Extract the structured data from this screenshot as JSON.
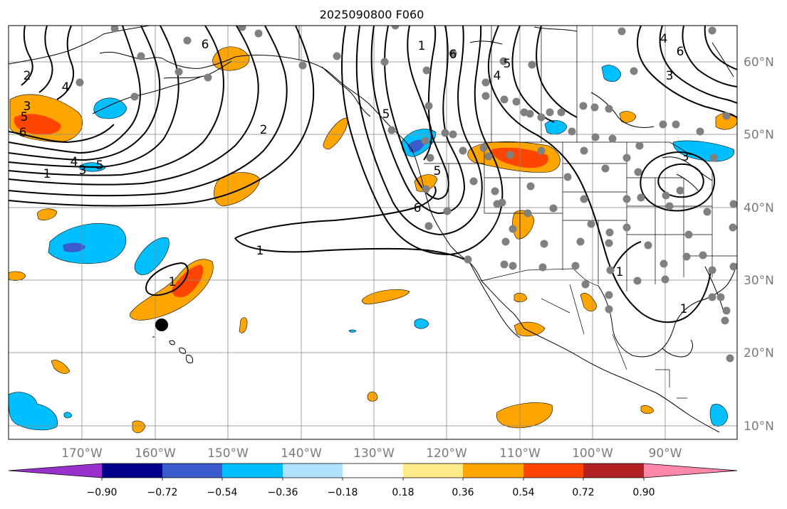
{
  "title": "2025090800 F060",
  "map": {
    "longitude_labels": [
      "170°W",
      "160°W",
      "150°W",
      "140°W",
      "130°W",
      "120°W",
      "110°W",
      "100°W",
      "90°W"
    ],
    "latitude_labels": [
      "60°N",
      "50°N",
      "40°N",
      "30°N",
      "20°N",
      "10°N"
    ],
    "contour_labels": [
      "6",
      "2",
      "1",
      "4",
      "3",
      "5",
      "1",
      "6",
      "5",
      "2",
      "3",
      "4",
      "5",
      "6",
      "4",
      "5",
      "1",
      "3",
      "1",
      "6",
      "3",
      "6",
      "5",
      "4",
      "1",
      "1"
    ],
    "station_marker_color": "#808080",
    "special_marker_color": "#000000"
  },
  "colorbar": {
    "ticks": [
      "−0.90",
      "−0.72",
      "−0.54",
      "−0.36",
      "−0.18",
      "0.18",
      "0.36",
      "0.54",
      "0.72",
      "0.90"
    ],
    "colors": [
      "#9932CC",
      "#00008B",
      "#3A5BCC",
      "#00BFFF",
      "#B0E2FF",
      "#FFFFFF",
      "#FFEB8A",
      "#FFA500",
      "#FF4500",
      "#B22222",
      "#FF88AA"
    ],
    "extend": "both"
  }
}
